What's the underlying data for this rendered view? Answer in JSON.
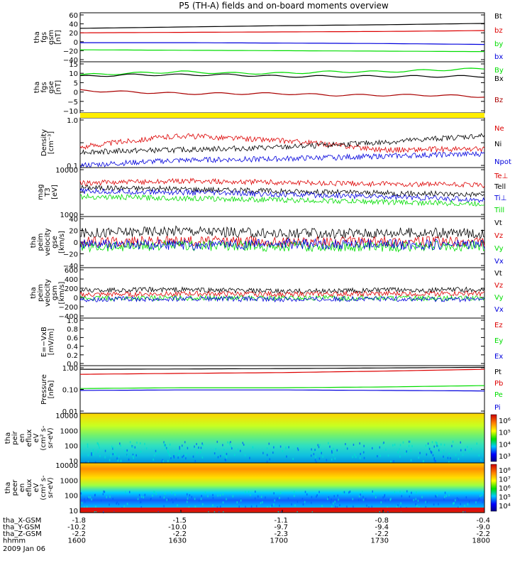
{
  "title": "P5 (TH-A) fields and on-board moments overview",
  "time_axis": {
    "rows": [
      {
        "label": "tha_X-GSM",
        "values": [
          "-1.8",
          "-1.5",
          "-1.1",
          "-0.8",
          "-0.4"
        ]
      },
      {
        "label": "tha_Y-GSM",
        "values": [
          "-10.2",
          "-10.0",
          "-9.7",
          "-9.4",
          "-9.0"
        ]
      },
      {
        "label": "tha_Z-GSM",
        "values": [
          "-2.2",
          "-2.2",
          "-2.3",
          "-2.2",
          "-2.2"
        ]
      },
      {
        "label": "hhmm",
        "values": [
          "1600",
          "1630",
          "1700",
          "1730",
          "1800"
        ]
      }
    ],
    "date": "2009 Jan 06"
  },
  "colors": {
    "black": "#000000",
    "red": "#dd0000",
    "green": "#00dd00",
    "blue": "#0000dd",
    "yellow": "#ffee00"
  },
  "chart_data": [
    {
      "type": "line",
      "ylabel": [
        "tha",
        "fgs",
        "gsm",
        "[nT]"
      ],
      "yticks": [
        "60",
        "40",
        "20",
        "0",
        "−20",
        "−40"
      ],
      "ylim": [
        -40,
        60
      ],
      "x": [
        0,
        30,
        60,
        90,
        120
      ],
      "series": [
        {
          "name": "Bt",
          "color": "#000000",
          "values": [
            30,
            33,
            36,
            38,
            41
          ]
        },
        {
          "name": "bz",
          "color": "#dd0000",
          "values": [
            20,
            21,
            22,
            23,
            25
          ]
        },
        {
          "name": "by",
          "color": "#00dd00",
          "values": [
            -18,
            -19,
            -20,
            -21,
            -22
          ]
        },
        {
          "name": "bx",
          "color": "#0000dd",
          "values": [
            -2,
            -2,
            -3,
            -4,
            -6
          ]
        }
      ]
    },
    {
      "type": "line",
      "ylabel": [
        "tha",
        "fgs",
        "gse",
        "[nT]"
      ],
      "yticks": [
        "15",
        "10",
        "5",
        "0",
        "−5",
        "−10"
      ],
      "ylim": [
        -15,
        15
      ],
      "x": [
        0,
        15,
        30,
        45,
        60,
        75,
        90,
        105,
        120
      ],
      "series": [
        {
          "name": "By",
          "color": "#00dd00",
          "values": [
            8,
            9,
            10,
            9,
            9,
            10,
            10,
            11,
            12
          ]
        },
        {
          "name": "Bx",
          "color": "#000000",
          "values": [
            7,
            8,
            8,
            8,
            7,
            7,
            7,
            7,
            7
          ]
        },
        {
          "name": "Bz",
          "color": "#aa0000",
          "values": [
            -2,
            -3,
            -4,
            -4,
            -4,
            -5,
            -5,
            -5,
            -6
          ]
        }
      ]
    },
    {
      "type": "line",
      "ylabel": [
        "Density",
        "[cm⁻³]"
      ],
      "yticks": [
        "1.0",
        "",
        "0.1"
      ],
      "ylim": [
        0.1,
        1.0
      ],
      "x": [
        0,
        30,
        60,
        90,
        120
      ],
      "series": [
        {
          "name": "Ne",
          "color": "#dd0000",
          "values": [
            0.25,
            0.45,
            0.35,
            0.22,
            0.23
          ]
        },
        {
          "name": "Ni",
          "color": "#000000",
          "values": [
            0.2,
            0.22,
            0.25,
            0.32,
            0.45
          ]
        },
        {
          "name": "Npot",
          "color": "#0000dd",
          "values": [
            0.1,
            0.13,
            0.14,
            0.16,
            0.18
          ]
        }
      ]
    },
    {
      "type": "line",
      "ylabel": [
        "mag",
        "T3",
        "[eV]"
      ],
      "yticks": [
        "10000",
        "",
        "1000"
      ],
      "ylim": [
        1000,
        10000
      ],
      "x": [
        0,
        30,
        60,
        90,
        120
      ],
      "series": [
        {
          "name": "Te⊥",
          "color": "#dd0000",
          "values": [
            5000,
            5600,
            5200,
            4800,
            4500
          ]
        },
        {
          "name": "Tell",
          "color": "#000000",
          "values": [
            4000,
            3700,
            3300,
            3000,
            2800
          ]
        },
        {
          "name": "Ti⊥",
          "color": "#0000dd",
          "values": [
            3300,
            3100,
            2800,
            2500,
            2100
          ]
        },
        {
          "name": "Till",
          "color": "#00dd00",
          "values": [
            2500,
            2300,
            2100,
            1900,
            1700
          ]
        }
      ]
    },
    {
      "type": "line",
      "ylabel": [
        "tha",
        "peim",
        "velocity",
        "gse",
        "[km/s]"
      ],
      "yticks": [
        "40",
        "20",
        "0",
        "−20",
        "−40"
      ],
      "ylim": [
        -40,
        40
      ],
      "x": [
        0,
        30,
        60,
        90,
        120
      ],
      "series": [
        {
          "name": "Vt",
          "color": "#000000",
          "values": [
            15,
            20,
            14,
            16,
            15
          ]
        },
        {
          "name": "Vz",
          "color": "#dd0000",
          "values": [
            0,
            2,
            0,
            1,
            0
          ]
        },
        {
          "name": "Vy",
          "color": "#00dd00",
          "values": [
            -8,
            -6,
            -7,
            -8,
            -6
          ]
        },
        {
          "name": "Vx",
          "color": "#0000dd",
          "values": [
            -4,
            -5,
            -3,
            -4,
            -4
          ]
        }
      ]
    },
    {
      "type": "line",
      "ylabel": [
        "tha",
        "peim",
        "velocity",
        "gsm",
        "[km/s]"
      ],
      "yticks": [
        "600",
        "400",
        "200",
        "0",
        "−200",
        "−400"
      ],
      "ylim": [
        -400,
        600
      ],
      "x": [
        0,
        30,
        60,
        90,
        120
      ],
      "series": [
        {
          "name": "Vt",
          "color": "#000000",
          "values": [
            160,
            170,
            130,
            160,
            170
          ]
        },
        {
          "name": "Vz",
          "color": "#dd0000",
          "values": [
            60,
            80,
            70,
            80,
            90
          ]
        },
        {
          "name": "Vy",
          "color": "#00dd00",
          "values": [
            -20,
            -10,
            -15,
            -10,
            -20
          ]
        },
        {
          "name": "Vx",
          "color": "#0000dd",
          "values": [
            -40,
            -30,
            -40,
            -30,
            -40
          ]
        }
      ]
    },
    {
      "type": "line",
      "ylabel": [
        "E=−VxB",
        "[mV/m]"
      ],
      "yticks": [
        "1.0",
        "0.8",
        "0.6",
        "0.4",
        "0.2",
        "0.0"
      ],
      "ylim": [
        0,
        1
      ],
      "x": [],
      "series": [
        {
          "name": "Ez",
          "color": "#dd0000",
          "values": []
        },
        {
          "name": "Ey",
          "color": "#00dd00",
          "values": []
        },
        {
          "name": "Ex",
          "color": "#0000dd",
          "values": []
        }
      ]
    },
    {
      "type": "line",
      "ylabel": [
        "Pressure",
        "[nPa]"
      ],
      "yticks": [
        "1.00",
        "0.10",
        "0.01"
      ],
      "ylim": [
        0.01,
        1.0
      ],
      "x": [
        0,
        30,
        60,
        90,
        120
      ],
      "series": [
        {
          "name": "Pt",
          "color": "#000000",
          "values": [
            0.85,
            0.88,
            0.92,
            0.98,
            1.05
          ]
        },
        {
          "name": "Pb",
          "color": "#dd0000",
          "values": [
            0.5,
            0.55,
            0.6,
            0.7,
            0.85
          ]
        },
        {
          "name": "Pe",
          "color": "#00dd00",
          "values": [
            0.11,
            0.12,
            0.12,
            0.13,
            0.15
          ]
        },
        {
          "name": "Pi",
          "color": "#0000dd",
          "values": [
            0.09,
            0.095,
            0.095,
            0.09,
            0.085
          ]
        }
      ]
    },
    {
      "type": "heatmap",
      "ylabel": [
        "tha",
        "peir",
        "en",
        "eflux",
        "eV",
        "(cm² s-",
        "sr-eV)"
      ],
      "yticks": [
        "10000",
        "1000",
        "100",
        "10"
      ],
      "ylim": [
        10,
        20000
      ],
      "colorbar_ticks": [
        "10⁶",
        "10⁵",
        "10⁴",
        "10³"
      ]
    },
    {
      "type": "heatmap",
      "ylabel": [
        "tha",
        "peer",
        "en",
        "eflux",
        "eV",
        "(cm² s-",
        "sr-eV)"
      ],
      "yticks": [
        "10000",
        "1000",
        "100",
        "10"
      ],
      "ylim": [
        10,
        20000
      ],
      "colorbar_ticks": [
        "10⁸",
        "10⁷",
        "10⁶",
        "10⁵",
        "10⁴"
      ]
    }
  ]
}
